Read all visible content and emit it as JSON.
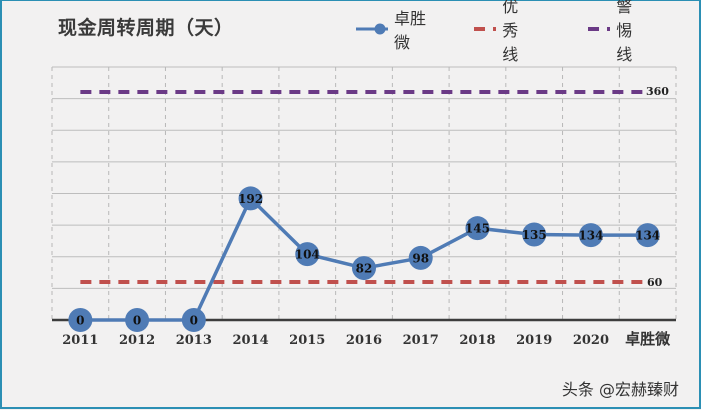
{
  "chart_data": {
    "type": "line",
    "title": "现金周转周期（天）",
    "xlabel": "",
    "ylabel": "",
    "categories": [
      "2011",
      "2012",
      "2013",
      "2014",
      "2015",
      "2016",
      "2017",
      "2018",
      "2019",
      "2020",
      "卓胜微"
    ],
    "series": [
      {
        "name": "卓胜微",
        "color": "#4f7bb5",
        "style": "solid-with-markers",
        "values": [
          0,
          0,
          0,
          192,
          104,
          82,
          98,
          145,
          135,
          134,
          134
        ]
      },
      {
        "name": "优秀线",
        "color": "#c0504d",
        "style": "dashed",
        "values": [
          60,
          60,
          60,
          60,
          60,
          60,
          60,
          60,
          60,
          60,
          60
        ]
      },
      {
        "name": "警惕线",
        "color": "#6b3a86",
        "style": "dashed",
        "values": [
          360,
          360,
          360,
          360,
          360,
          360,
          360,
          360,
          360,
          360,
          360
        ]
      }
    ],
    "annotations": [
      {
        "text": "360",
        "series": "警惕线"
      },
      {
        "text": "60",
        "series": "优秀线"
      }
    ],
    "ylim": [
      0,
      400
    ],
    "grid": true,
    "legend_position": "top-right",
    "data_labels": true
  },
  "header": {
    "title": "现金周转周期（天）"
  },
  "legend": {
    "items": [
      {
        "label": "卓胜微",
        "color": "#4f7bb5"
      },
      {
        "label": "优秀线",
        "color": "#c0504d"
      },
      {
        "label": "警惕线",
        "color": "#6b3a86"
      }
    ]
  },
  "reference_labels": {
    "warning": "360",
    "excellent": "60"
  },
  "watermark": "头条 @宏赫臻财"
}
